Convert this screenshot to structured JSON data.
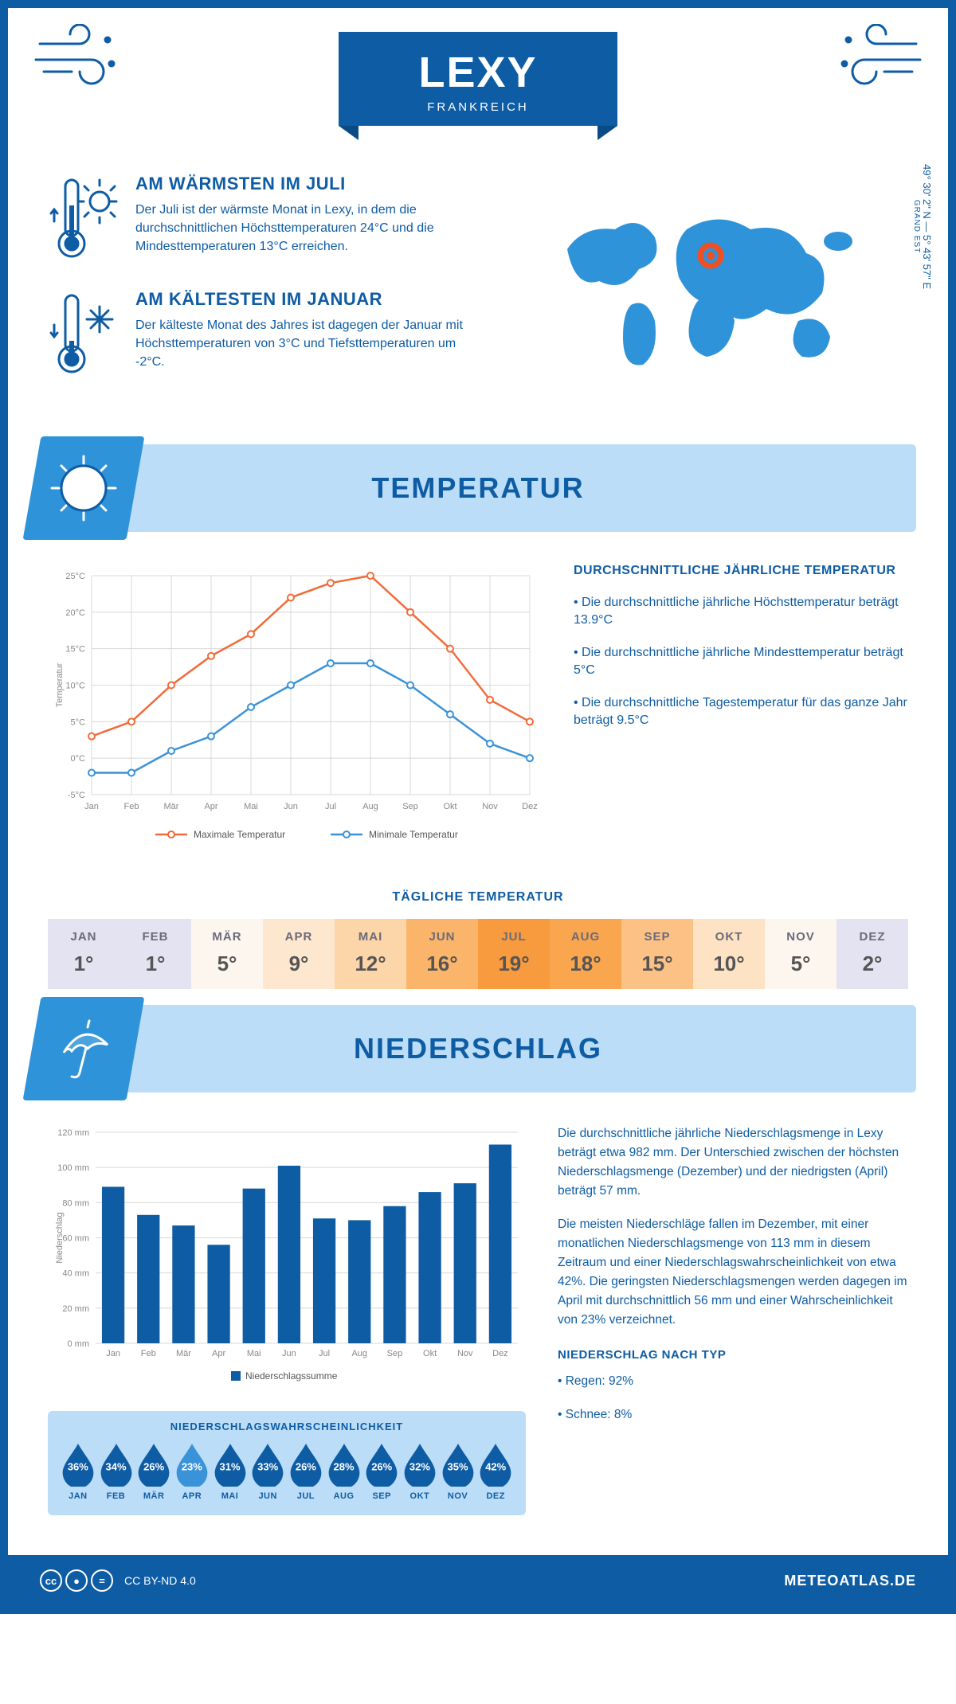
{
  "header": {
    "city": "LEXY",
    "country": "FRANKREICH"
  },
  "coords": {
    "lat": "49° 30' 2\" N",
    "lon": "5° 43' 57\" E",
    "region": "GRAND EST"
  },
  "warm": {
    "title": "AM WÄRMSTEN IM JULI",
    "text": "Der Juli ist der wärmste Monat in Lexy, in dem die durchschnittlichen Höchsttemperaturen 24°C und die Mindesttemperaturen 13°C erreichen."
  },
  "cold": {
    "title": "AM KÄLTESTEN IM JANUAR",
    "text": "Der kälteste Monat des Jahres ist dagegen der Januar mit Höchsttemperaturen von 3°C und Tiefsttemperaturen um -2°C."
  },
  "temp_section": {
    "title": "TEMPERATUR",
    "notes_title": "DURCHSCHNITTLICHE JÄHRLICHE TEMPERATUR",
    "n1": "• Die durchschnittliche jährliche Höchsttemperatur beträgt 13.9°C",
    "n2": "• Die durchschnittliche jährliche Mindesttemperatur beträgt 5°C",
    "n3": "• Die durchschnittliche Tagestemperatur für das ganze Jahr beträgt 9.5°C"
  },
  "temp_chart": {
    "months": [
      "Jan",
      "Feb",
      "Mär",
      "Apr",
      "Mai",
      "Jun",
      "Jul",
      "Aug",
      "Sep",
      "Okt",
      "Nov",
      "Dez"
    ],
    "max": [
      3,
      5,
      10,
      14,
      17,
      22,
      24,
      25,
      20,
      15,
      8,
      5
    ],
    "min": [
      -2,
      -2,
      1,
      3,
      7,
      10,
      13,
      13,
      10,
      6,
      2,
      0
    ],
    "y_ticks": [
      -5,
      0,
      5,
      10,
      15,
      20,
      25
    ],
    "y_labels": [
      "-5°C",
      "0°C",
      "5°C",
      "10°C",
      "15°C",
      "20°C",
      "25°C"
    ],
    "y_axis_label": "Temperatur",
    "max_color": "#f26b3a",
    "min_color": "#3a93d9",
    "grid_color": "#d8d8d8",
    "legend_max": "Maximale Temperatur",
    "legend_min": "Minimale Temperatur"
  },
  "daily": {
    "title": "TÄGLICHE TEMPERATUR",
    "months": [
      "JAN",
      "FEB",
      "MÄR",
      "APR",
      "MAI",
      "JUN",
      "JUL",
      "AUG",
      "SEP",
      "OKT",
      "NOV",
      "DEZ"
    ],
    "values": [
      "1°",
      "1°",
      "5°",
      "9°",
      "12°",
      "16°",
      "19°",
      "18°",
      "15°",
      "10°",
      "5°",
      "2°"
    ],
    "colors": [
      "#e4e3f2",
      "#e4e3f2",
      "#fdf6ef",
      "#fde7cf",
      "#fcd5a8",
      "#fbb56a",
      "#f89a3e",
      "#f9a64f",
      "#fcc184",
      "#fde2c4",
      "#fdf6ef",
      "#e4e3f2"
    ]
  },
  "precip_section": {
    "title": "NIEDERSCHLAG"
  },
  "precip_chart": {
    "months": [
      "Jan",
      "Feb",
      "Mär",
      "Apr",
      "Mai",
      "Jun",
      "Jul",
      "Aug",
      "Sep",
      "Okt",
      "Nov",
      "Dez"
    ],
    "values": [
      89,
      73,
      67,
      56,
      88,
      101,
      71,
      70,
      78,
      86,
      91,
      113
    ],
    "y_ticks": [
      0,
      20,
      40,
      60,
      80,
      100,
      120
    ],
    "y_labels": [
      "0 mm",
      "20 mm",
      "40 mm",
      "60 mm",
      "80 mm",
      "100 mm",
      "120 mm"
    ],
    "y_axis_label": "Niederschlag",
    "bar_color": "#0e5ca4",
    "grid_color": "#d8d8d8",
    "legend": "Niederschlagssumme"
  },
  "precip_text": {
    "p1": "Die durchschnittliche jährliche Niederschlagsmenge in Lexy beträgt etwa 982 mm. Der Unterschied zwischen der höchsten Niederschlagsmenge (Dezember) und der niedrigsten (April) beträgt 57 mm.",
    "p2": "Die meisten Niederschläge fallen im Dezember, mit einer monatlichen Niederschlagsmenge von 113 mm in diesem Zeitraum und einer Niederschlagswahrscheinlichkeit von etwa 42%. Die geringsten Niederschlagsmengen werden dagegen im April mit durchschnittlich 56 mm und einer Wahrscheinlichkeit von 23% verzeichnet.",
    "type_title": "NIEDERSCHLAG NACH TYP",
    "type1": "• Regen: 92%",
    "type2": "• Schnee: 8%"
  },
  "prob": {
    "title": "NIEDERSCHLAGSWAHRSCHEINLICHKEIT",
    "months": [
      "JAN",
      "FEB",
      "MÄR",
      "APR",
      "MAI",
      "JUN",
      "JUL",
      "AUG",
      "SEP",
      "OKT",
      "NOV",
      "DEZ"
    ],
    "pct": [
      "36%",
      "34%",
      "26%",
      "23%",
      "31%",
      "33%",
      "26%",
      "28%",
      "26%",
      "32%",
      "35%",
      "42%"
    ],
    "dark": "#0e5ca4",
    "light": "#3a93d9",
    "light_index": 3
  },
  "footer": {
    "license": "CC BY-ND 4.0",
    "site": "METEOATLAS.DE"
  }
}
